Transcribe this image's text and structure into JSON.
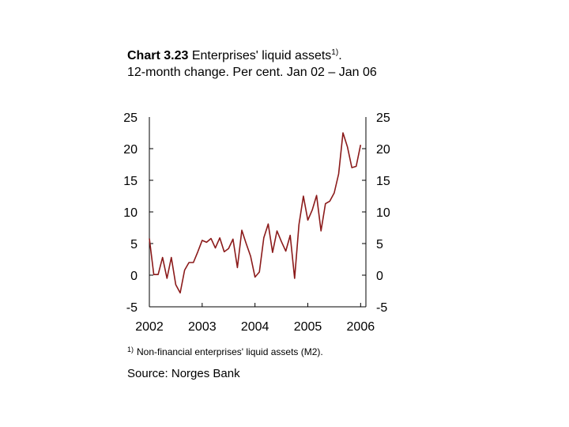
{
  "title": {
    "number": "Chart 3.23",
    "text": "Enterprises' liquid assets",
    "superscript": "1)",
    "after_superscript": ".",
    "subtitle": "12-month change. Per cent. Jan 02 – Jan 06"
  },
  "footnote": {
    "marker": "1)",
    "text": "Non-financial enterprises' liquid assets (M2)."
  },
  "source": "Source: Norges Bank",
  "colors": {
    "line": "#8b1a1a",
    "axis": "#000000"
  },
  "chart_data": {
    "type": "line",
    "title": "Enterprises' liquid assets",
    "subtitle": "12-month change. Per cent. Jan 02 – Jan 06",
    "ylim": [
      -5,
      25
    ],
    "yticks": [
      -5,
      0,
      5,
      10,
      15,
      20,
      25
    ],
    "ytick_labels": [
      "-5",
      "0",
      "5",
      "10",
      "15",
      "20",
      "25"
    ],
    "xlim": [
      2002,
      2006.1
    ],
    "xticks": [
      2002,
      2003,
      2004,
      2005,
      2006
    ],
    "xtick_labels": [
      "2002",
      "2003",
      "2004",
      "2005",
      "2006"
    ],
    "grid": false,
    "legend": "none",
    "dual_y_axis": true,
    "series": [
      {
        "x": [
          "2002-01",
          "2002-02",
          "2002-03",
          "2002-04",
          "2002-05",
          "2002-06",
          "2002-07",
          "2002-08",
          "2002-09",
          "2002-10",
          "2002-11",
          "2002-12",
          "2003-01",
          "2003-02",
          "2003-03",
          "2003-04",
          "2003-05",
          "2003-06",
          "2003-07",
          "2003-08",
          "2003-09",
          "2003-10",
          "2003-11",
          "2003-12",
          "2004-01",
          "2004-02",
          "2004-03",
          "2004-04",
          "2004-05",
          "2004-06",
          "2004-07",
          "2004-08",
          "2004-09",
          "2004-10",
          "2004-11",
          "2004-12",
          "2005-01",
          "2005-02",
          "2005-03",
          "2005-04",
          "2005-05",
          "2005-06",
          "2005-07",
          "2005-08",
          "2005-09",
          "2005-10",
          "2005-11",
          "2005-12",
          "2006-01"
        ],
        "values": [
          5.8,
          0.1,
          0.1,
          2.8,
          -0.5,
          2.8,
          -1.5,
          -2.8,
          0.8,
          2.0,
          2.0,
          3.7,
          5.5,
          5.2,
          5.8,
          4.3,
          5.9,
          3.7,
          4.2,
          5.7,
          1.2,
          7.1,
          5.0,
          3.0,
          -0.3,
          0.5,
          5.9,
          8.1,
          3.6,
          7.0,
          5.3,
          3.8,
          6.3,
          -0.5,
          8.0,
          12.5,
          8.7,
          10.3,
          12.6,
          7.0,
          11.3,
          11.7,
          13.0,
          16.0,
          22.5,
          20.3,
          17.0,
          17.2,
          20.6
        ]
      }
    ]
  }
}
